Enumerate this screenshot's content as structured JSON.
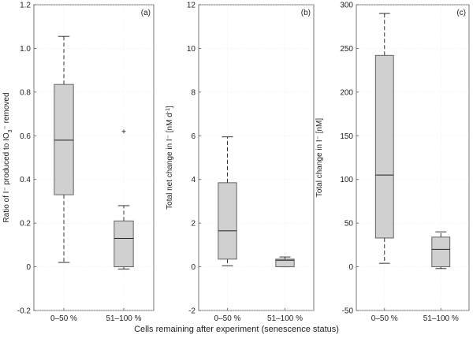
{
  "figure": {
    "xlabel": "Cells remaining after experiment (senescence status)",
    "box_fill": "#d0d0d0",
    "box_stroke": "#555555"
  },
  "chart_data": [
    {
      "type": "box",
      "panel_label": "(a)",
      "ylabel_parts": [
        "Ratio of I",
        "⁻",
        " produced to IO",
        "3",
        "⁻",
        " removed"
      ],
      "ylim": [
        -0.2,
        1.2
      ],
      "yticks": [
        -0.2,
        0,
        0.2,
        0.4,
        0.6,
        0.8,
        1.0,
        1.2
      ],
      "ytick_labels": [
        "-0.2",
        "0",
        "0.2",
        "0.4",
        "0.6",
        "0.8",
        "1.0",
        "1.2"
      ],
      "categories": [
        "0–50 %",
        "51–100 %"
      ],
      "boxes": [
        {
          "whisker_low": 0.02,
          "q1": 0.33,
          "median": 0.58,
          "q3": 0.835,
          "whisker_high": 1.055,
          "outliers": []
        },
        {
          "whisker_low": -0.01,
          "q1": 0.0,
          "median": 0.13,
          "q3": 0.21,
          "whisker_high": 0.28,
          "outliers": [
            0.62
          ]
        }
      ]
    },
    {
      "type": "box",
      "panel_label": "(b)",
      "ylabel_parts": [
        "Total net change in I",
        "⁻",
        " [nM d",
        "-1",
        "]"
      ],
      "ylim": [
        -2,
        12
      ],
      "yticks": [
        -2,
        0,
        2,
        4,
        6,
        8,
        10,
        12
      ],
      "ytick_labels": [
        "-2",
        "0",
        "2",
        "4",
        "6",
        "8",
        "10",
        "12"
      ],
      "categories": [
        "0–50 %",
        "51–100 %"
      ],
      "boxes": [
        {
          "whisker_low": 0.05,
          "q1": 0.35,
          "median": 1.65,
          "q3": 3.85,
          "whisker_high": 5.95,
          "outliers": []
        },
        {
          "whisker_low": 0.0,
          "q1": 0.0,
          "median": 0.3,
          "q3": 0.35,
          "whisker_high": 0.45,
          "outliers": []
        }
      ]
    },
    {
      "type": "box",
      "panel_label": "(c)",
      "ylabel_parts": [
        "Total change in I",
        "⁻",
        " [nM]"
      ],
      "ylim": [
        -50,
        300
      ],
      "yticks": [
        -50,
        0,
        50,
        100,
        150,
        200,
        250,
        300
      ],
      "ytick_labels": [
        "-50",
        "0",
        "50",
        "100",
        "150",
        "200",
        "250",
        "300"
      ],
      "categories": [
        "0–50 %",
        "51–100 %"
      ],
      "boxes": [
        {
          "whisker_low": 4,
          "q1": 33,
          "median": 105,
          "q3": 242,
          "whisker_high": 290,
          "outliers": []
        },
        {
          "whisker_low": -2,
          "q1": 0,
          "median": 20,
          "q3": 34,
          "whisker_high": 40,
          "outliers": []
        }
      ]
    }
  ]
}
